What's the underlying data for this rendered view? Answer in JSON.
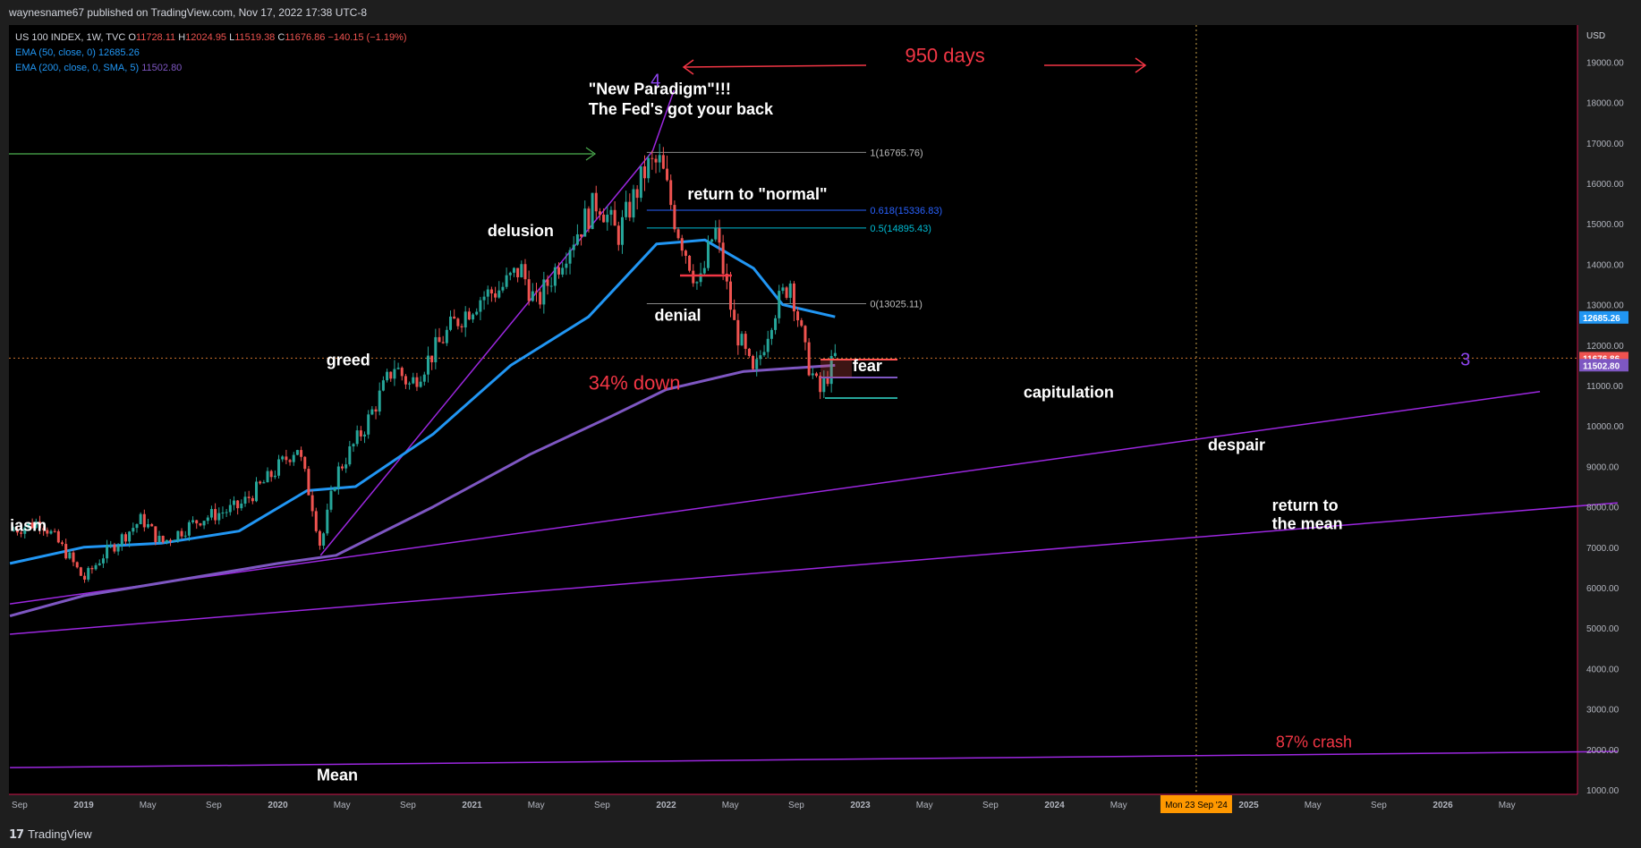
{
  "header": {
    "publisher": "waynesname67 published on TradingView.com, Nov 17, 2022 17:38 UTC-8"
  },
  "footer": {
    "brand": "TradingView",
    "logo_glyph": "17"
  },
  "legend": {
    "symbol": "US 100 INDEX, 1W, TVC",
    "open_label": "O",
    "open": "11728.11",
    "high_label": "H",
    "high": "12024.95",
    "low_label": "L",
    "low": "11519.38",
    "close_label": "C",
    "close": "11676.86",
    "change": "−140.15 (−1.19%)",
    "ema50_label": "EMA (50, close, 0)",
    "ema50_value": "12685.26",
    "ema200_label": "EMA (200, close, 0, SMA, 5)",
    "ema200_value": "11502.80"
  },
  "colors": {
    "background": "#000000",
    "grid_border": "#d0134a",
    "up_candle": "#26a69a",
    "down_candle": "#ef5350",
    "ema50": "#2196f3",
    "ema200": "#7e57c2",
    "trendline": "#9c27e0",
    "annotation_red": "#f23645",
    "fib_blue": "#2962ff",
    "fib_teal": "#00bcd4",
    "fib_gray": "#888888",
    "green_arrow": "#4caf50",
    "date_badge": "#ff9800",
    "white_text": "#ffffff"
  },
  "chart_data": {
    "type": "candlestick",
    "y_scale": "price",
    "ylim": [
      1000,
      20000
    ],
    "x_range": [
      "2018-08",
      "2026-06"
    ],
    "price_axis": {
      "unit": "USD",
      "ticks": [
        1000,
        2000,
        3000,
        4000,
        5000,
        6000,
        7000,
        8000,
        9000,
        10000,
        11000,
        12000,
        13000,
        14000,
        15000,
        16000,
        17000,
        18000,
        19000
      ]
    },
    "time_axis": {
      "ticks": [
        {
          "t": 2018.67,
          "label": "Sep"
        },
        {
          "t": 2019.0,
          "label": "2019"
        },
        {
          "t": 2019.33,
          "label": "May"
        },
        {
          "t": 2019.67,
          "label": "Sep"
        },
        {
          "t": 2020.0,
          "label": "2020"
        },
        {
          "t": 2020.33,
          "label": "May"
        },
        {
          "t": 2020.67,
          "label": "Sep"
        },
        {
          "t": 2021.0,
          "label": "2021"
        },
        {
          "t": 2021.33,
          "label": "May"
        },
        {
          "t": 2021.67,
          "label": "Sep"
        },
        {
          "t": 2022.0,
          "label": "2022"
        },
        {
          "t": 2022.33,
          "label": "May"
        },
        {
          "t": 2022.67,
          "label": "Sep"
        },
        {
          "t": 2023.0,
          "label": "2023"
        },
        {
          "t": 2023.33,
          "label": "May"
        },
        {
          "t": 2023.67,
          "label": "Sep"
        },
        {
          "t": 2024.0,
          "label": "2024"
        },
        {
          "t": 2024.33,
          "label": "May"
        },
        {
          "t": 2025.0,
          "label": "2025"
        },
        {
          "t": 2025.33,
          "label": "May"
        },
        {
          "t": 2025.67,
          "label": "Sep"
        },
        {
          "t": 2026.0,
          "label": "2026"
        },
        {
          "t": 2026.33,
          "label": "May"
        }
      ],
      "cursor_date": "Mon 23 Sep '24",
      "cursor_t": 2024.73
    },
    "price_anchors": [
      [
        2018.62,
        7400
      ],
      [
        2018.78,
        7650
      ],
      [
        2018.92,
        6800
      ],
      [
        2019.0,
        6200
      ],
      [
        2019.1,
        6800
      ],
      [
        2019.3,
        7700
      ],
      [
        2019.4,
        7100
      ],
      [
        2019.6,
        7700
      ],
      [
        2019.8,
        8000
      ],
      [
        2019.95,
        8700
      ],
      [
        2020.1,
        9500
      ],
      [
        2020.18,
        8000
      ],
      [
        2020.22,
        7000
      ],
      [
        2020.3,
        8800
      ],
      [
        2020.45,
        10000
      ],
      [
        2020.6,
        11500
      ],
      [
        2020.68,
        11000
      ],
      [
        2020.9,
        12500
      ],
      [
        2021.05,
        13200
      ],
      [
        2021.15,
        13400
      ],
      [
        2021.25,
        13900
      ],
      [
        2021.33,
        13000
      ],
      [
        2021.5,
        14500
      ],
      [
        2021.65,
        15600
      ],
      [
        2021.75,
        14700
      ],
      [
        2021.9,
        16400
      ],
      [
        2021.97,
        16500
      ],
      [
        2022.05,
        15000
      ],
      [
        2022.17,
        13400
      ],
      [
        2022.25,
        14900
      ],
      [
        2022.35,
        12500
      ],
      [
        2022.45,
        11200
      ],
      [
        2022.55,
        12800
      ],
      [
        2022.64,
        13600
      ],
      [
        2022.72,
        11700
      ],
      [
        2022.79,
        10800
      ],
      [
        2022.87,
        11700
      ]
    ],
    "last_price": 11676.86,
    "series": [
      {
        "name": "EMA (50, close, 0)",
        "points": [
          [
            2018.62,
            6600
          ],
          [
            2019.0,
            7000
          ],
          [
            2019.4,
            7100
          ],
          [
            2019.8,
            7400
          ],
          [
            2020.15,
            8400
          ],
          [
            2020.4,
            8500
          ],
          [
            2020.8,
            9800
          ],
          [
            2021.2,
            11500
          ],
          [
            2021.6,
            12700
          ],
          [
            2021.95,
            14500
          ],
          [
            2022.2,
            14600
          ],
          [
            2022.45,
            13900
          ],
          [
            2022.6,
            13000
          ],
          [
            2022.87,
            12700
          ]
        ],
        "last": 12685.26
      },
      {
        "name": "EMA (200, close, 0, SMA, 5)",
        "points": [
          [
            2018.62,
            5300
          ],
          [
            2019.0,
            5800
          ],
          [
            2019.5,
            6200
          ],
          [
            2020.0,
            6600
          ],
          [
            2020.3,
            6800
          ],
          [
            2020.8,
            8000
          ],
          [
            2021.3,
            9300
          ],
          [
            2021.7,
            10200
          ],
          [
            2022.0,
            10900
          ],
          [
            2022.4,
            11350
          ],
          [
            2022.87,
            11500
          ]
        ],
        "last": 11502.8
      }
    ],
    "trendlines": [
      {
        "from": [
          2018.62,
          5600
        ],
        "to": [
          2026.5,
          10850
        ]
      },
      {
        "from": [
          2018.62,
          4850
        ],
        "to": [
          2026.9,
          8100
        ]
      },
      {
        "from": [
          2018.62,
          1550
        ],
        "to": [
          2026.9,
          1950
        ]
      },
      {
        "from": [
          2020.22,
          6800
        ],
        "to": [
          2021.93,
          16800
        ]
      },
      {
        "from": [
          2021.93,
          16800
        ],
        "to": [
          2022.04,
          18300
        ]
      }
    ],
    "fib_levels": [
      {
        "ratio_label": "1(16765.76)",
        "value": 16765.76
      },
      {
        "ratio_label": "0.618(15336.83)",
        "value": 15336.83
      },
      {
        "ratio_label": "0.5(14895.43)",
        "value": 14895.43
      },
      {
        "ratio_label": "0(13025.11)",
        "value": 13025.11
      }
    ],
    "annotations": [
      {
        "text": "\"New Paradigm\"!!!",
        "t": 2021.6,
        "p": 18200,
        "color": "white"
      },
      {
        "text": "The Fed's got your back",
        "t": 2021.6,
        "p": 17700,
        "color": "white"
      },
      {
        "text": "delusion",
        "t": 2021.08,
        "p": 14700,
        "color": "white"
      },
      {
        "text": "greed",
        "t": 2020.25,
        "p": 11500,
        "color": "white"
      },
      {
        "text": "iasm",
        "t": 2018.62,
        "p": 7400,
        "color": "white"
      },
      {
        "text": "return to \"normal\"",
        "t": 2022.11,
        "p": 15600,
        "color": "white"
      },
      {
        "text": "denial",
        "t": 2021.94,
        "p": 12600,
        "color": "white"
      },
      {
        "text": "34% down",
        "t": 2021.6,
        "p": 10900,
        "color": "red"
      },
      {
        "text": "fear",
        "t": 2022.96,
        "p": 11350,
        "color": "white"
      },
      {
        "text": "capitulation",
        "t": 2023.84,
        "p": 10700,
        "color": "white"
      },
      {
        "text": "despair",
        "t": 2024.79,
        "p": 9400,
        "color": "white"
      },
      {
        "text": "return to",
        "t": 2025.12,
        "p": 7900,
        "color": "white"
      },
      {
        "text": "the mean",
        "t": 2025.12,
        "p": 7450,
        "color": "white"
      },
      {
        "text": "87% crash",
        "t": 2025.14,
        "p": 2050,
        "color": "red"
      },
      {
        "text": "Mean",
        "t": 2020.2,
        "p": 1230,
        "color": "white"
      },
      {
        "text": "950 days",
        "t": 2023.23,
        "p": 19000,
        "color": "red"
      },
      {
        "text": "4",
        "t": 2021.92,
        "p": 18400,
        "color": "purple"
      },
      {
        "text": "3",
        "t": 2026.09,
        "p": 11500,
        "color": "purple"
      }
    ]
  }
}
